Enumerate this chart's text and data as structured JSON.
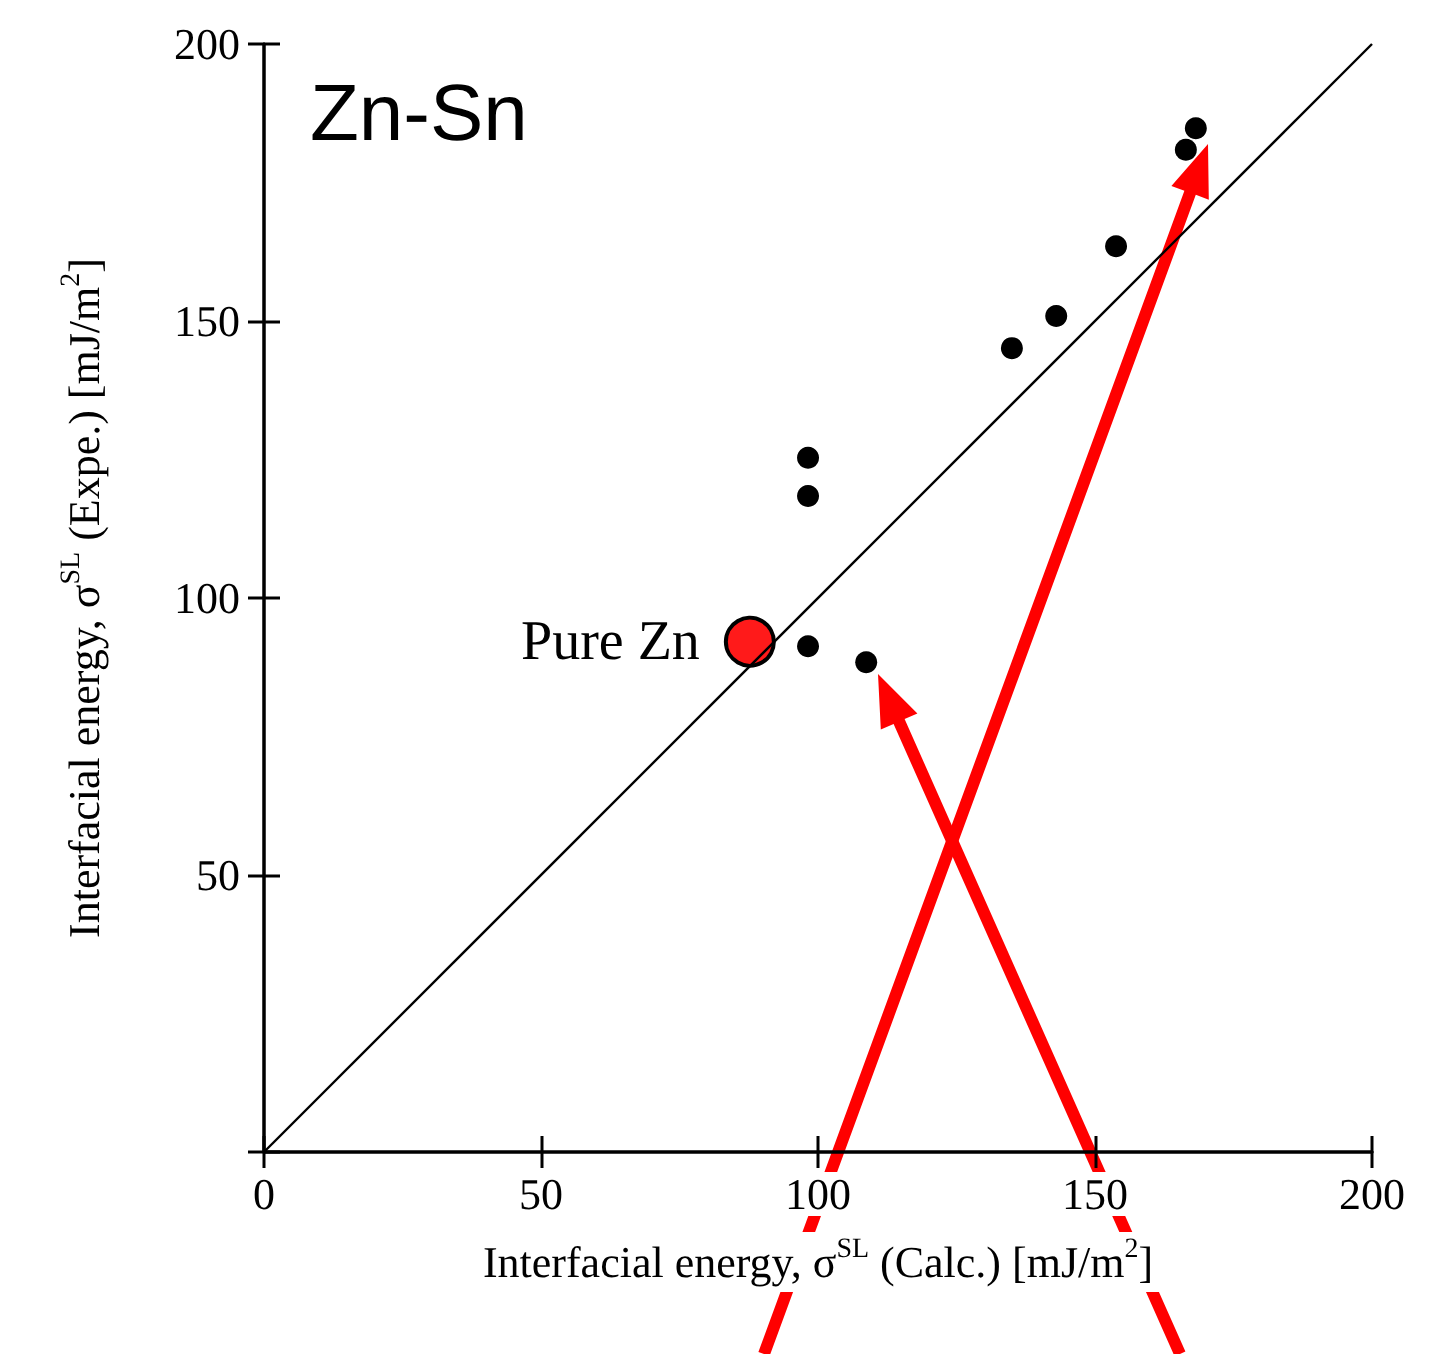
{
  "chart_data": {
    "type": "scatter",
    "title": "Zn-Sn",
    "xlabel": "Interfacial energy, σ$^{SL}$ (Calc.) [mJ/m$^{2}$]",
    "ylabel": "Interfacial energy, σ$^{SL}$ (Expe.) [mJ/m$^{2}$]",
    "series": [
      {
        "type": "line",
        "color": "#000000",
        "x": [
          0,
          200
        ],
        "values": [
          0,
          200
        ],
        "marker": "none"
      },
      {
        "color": "#000000",
        "x": [
          168.2,
          166.4,
          153.8,
          143,
          135,
          98.2,
          98.2,
          98.2,
          108.7
        ],
        "values": [
          184.8,
          180.9,
          163.5,
          150.9,
          145.1,
          125.3,
          118.4,
          91.3,
          88.4
        ],
        "marker": "circle"
      },
      {
        "name": "Pure Zn",
        "color": "#ff1a1a",
        "x": [
          87.7
        ],
        "values": [
          92.1
        ],
        "marker": "circle"
      }
    ],
    "xlim": [
      0,
      200
    ],
    "xticks": [
      0,
      50,
      100,
      150,
      200
    ],
    "ylim": [
      0,
      200
    ],
    "yticks": [
      {
        "value": 0,
        "label": null
      },
      50,
      100,
      150,
      200
    ],
    "grid": false,
    "legend": false
  }
}
